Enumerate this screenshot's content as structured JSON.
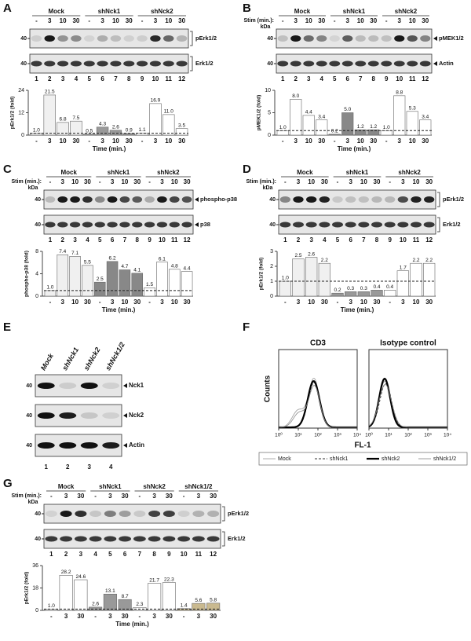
{
  "panels": [
    {
      "letter": "A",
      "groups": [
        "Mock",
        "shNck1",
        "shNck2"
      ],
      "stims": [
        "-",
        "3",
        "10",
        "30",
        "-",
        "3",
        "10",
        "30",
        "-",
        "3",
        "10",
        "30"
      ],
      "lanes": [
        1,
        2,
        3,
        4,
        5,
        6,
        7,
        8,
        9,
        10,
        11,
        12
      ],
      "pointer": "bracket",
      "blots": [
        {
          "marker": 40,
          "label": "pErk1/2"
        },
        {
          "marker": 40,
          "label": "Erk1/2"
        }
      ],
      "chart": {
        "ylabel": "pErk1/2 (fold)",
        "ylim": [
          0,
          24
        ],
        "yticks": [
          0,
          12,
          24
        ],
        "values": [
          1.0,
          21.5,
          6.8,
          7.5,
          0.5,
          4.3,
          2.6,
          0.9,
          1.1,
          16.9,
          11.0,
          3.5
        ],
        "value_labels": [
          "1.0",
          "21.5",
          "6.8",
          "7.5",
          "0.5",
          "4.3",
          "2.6",
          "0.9",
          "1.1",
          "16.9",
          "11.0",
          "3.5"
        ],
        "colors": [
          "#f0f0f0",
          "#999999",
          "#ffffff"
        ],
        "reference_line": 1,
        "xlabel": "Time (min.)"
      }
    },
    {
      "letter": "B",
      "stim_label": "Stim (min.):",
      "kda": "kDa",
      "groups": [
        "Mock",
        "shNck1",
        "shNck2"
      ],
      "stims": [
        "-",
        "3",
        "10",
        "30",
        "-",
        "3",
        "10",
        "30",
        "-",
        "3",
        "10",
        "30"
      ],
      "lanes": [
        1,
        2,
        3,
        4,
        5,
        6,
        7,
        8,
        9,
        10,
        11,
        12
      ],
      "pointer": "arrow",
      "blots": [
        {
          "marker": 40,
          "label": "pMEK1/2"
        },
        {
          "marker": 40,
          "label": "Actin"
        }
      ],
      "chart": {
        "ylabel": "pMEK1/2 (fold)",
        "ylim": [
          0,
          10
        ],
        "yticks": [
          0,
          5,
          10
        ],
        "values": [
          1.0,
          8.0,
          4.4,
          3.4,
          0.2,
          5.0,
          1.2,
          1.2,
          1.0,
          8.8,
          5.3,
          3.4
        ],
        "value_labels": [
          "1.0",
          "8.0",
          "4.4",
          "3.4",
          "0.2",
          "5.0",
          "1.2",
          "1.2",
          "1.0",
          "8.8",
          "5.3",
          "3.4"
        ],
        "colors": [
          "#ffffff",
          "#888888",
          "#ffffff"
        ],
        "reference_line": 1,
        "xlabel": "Time (min.)"
      }
    },
    {
      "letter": "C",
      "stim_label": "Stim (min.):",
      "kda": "kDa",
      "groups": [
        "Mock",
        "shNck1",
        "shNck2"
      ],
      "stims": [
        "-",
        "3",
        "10",
        "30",
        "-",
        "3",
        "10",
        "30",
        "-",
        "3",
        "10",
        "30"
      ],
      "lanes": [
        1,
        2,
        3,
        4,
        5,
        6,
        7,
        8,
        9,
        10,
        11,
        12
      ],
      "pointer": "arrow",
      "blots": [
        {
          "marker": 40,
          "label": "phospho-p38"
        },
        {
          "marker": 40,
          "label": "p38"
        }
      ],
      "chart": {
        "ylabel": "phospho-p38 (fold)",
        "ylim": [
          0,
          8
        ],
        "yticks": [
          0,
          4,
          8
        ],
        "values": [
          1.0,
          7.4,
          7.1,
          5.5,
          2.5,
          6.2,
          4.7,
          4.1,
          1.5,
          6.1,
          4.8,
          4.4
        ],
        "value_labels": [
          "1.0",
          "7.4",
          "7.1",
          "5.5",
          "2.5",
          "6.2",
          "4.7",
          "4.1",
          "1.5",
          "6.1",
          "4.8",
          "4.4"
        ],
        "colors": [
          "#f0f0f0",
          "#888888",
          "#ffffff"
        ],
        "reference_line": 1,
        "xlabel": "Time (min.)"
      }
    },
    {
      "letter": "D",
      "stim_label": "Stim (min.):",
      "kda": "kDa",
      "groups": [
        "Mock",
        "shNck1",
        "shNck2"
      ],
      "stims": [
        "-",
        "3",
        "10",
        "30",
        "-",
        "3",
        "10",
        "30",
        "-",
        "3",
        "10",
        "30"
      ],
      "lanes": [
        1,
        2,
        3,
        4,
        5,
        6,
        7,
        8,
        9,
        10,
        11,
        12
      ],
      "pointer": "bracket",
      "blots": [
        {
          "marker": 40,
          "label": "pErk1/2"
        },
        {
          "marker": 40,
          "label": "Erk1/2"
        }
      ],
      "chart": {
        "ylabel": "pErk1/2 (fold)",
        "ylim": [
          0,
          3
        ],
        "yticks": [
          0,
          1,
          2,
          3
        ],
        "values": [
          1.0,
          2.5,
          2.6,
          2.2,
          0.2,
          0.3,
          0.3,
          0.4,
          0.4,
          1.7,
          2.2,
          2.2
        ],
        "value_labels": [
          "1.0",
          "2.5",
          "2.6",
          "2.2",
          "0.2",
          "0.3",
          "0.3",
          "0.4",
          "0.4",
          "1.7",
          "2.2",
          "2.2"
        ],
        "colors": [
          "#f0f0f0",
          "#999999",
          "#ffffff"
        ],
        "reference_line": 1,
        "xlabel": "Time (min.)"
      }
    },
    {
      "letter": "E",
      "lane_headers": [
        "Mock",
        "shNck1",
        "shNck2",
        "shNck1/2"
      ],
      "lanes": [
        1,
        2,
        3,
        4
      ],
      "pointer": "arrow",
      "blots": [
        {
          "marker": 40,
          "label": "Nck1"
        },
        {
          "marker": 40,
          "label": "Nck2"
        },
        {
          "marker": 40,
          "label": "Actin"
        }
      ]
    },
    {
      "letter": "F",
      "plots": [
        {
          "title": "CD3"
        },
        {
          "title": "Isotype control"
        }
      ],
      "ylabel": "Counts",
      "xlabel": "FL-1",
      "xscale": "log",
      "xlim": [
        1,
        10000
      ],
      "xticks": [
        {
          "value": 1,
          "label": "10⁰"
        },
        {
          "value": 10,
          "label": "10¹"
        },
        {
          "value": 100,
          "label": "10²"
        },
        {
          "value": 1000,
          "label": "10³"
        },
        {
          "value": 10000,
          "label": "10⁴"
        }
      ],
      "series": [
        {
          "name": "Mock",
          "color": "#999999"
        },
        {
          "name": "shNck1",
          "color": "#333333"
        },
        {
          "name": "shNck2",
          "color": "#000000"
        },
        {
          "name": "shNck1/2",
          "color": "#888888"
        }
      ]
    },
    {
      "letter": "G",
      "stim_label": "Stim (min.):",
      "kda": "kDa",
      "groups": [
        "Mock",
        "shNck1",
        "shNck2",
        "shNck1/2"
      ],
      "stims": [
        "-",
        "3",
        "30",
        "-",
        "3",
        "30",
        "-",
        "3",
        "30",
        "-",
        "3",
        "30"
      ],
      "lanes": [
        1,
        2,
        3,
        4,
        5,
        6,
        7,
        8,
        9,
        10,
        11,
        12
      ],
      "pointer": "bracket",
      "blots": [
        {
          "marker": 40,
          "label": "pErk1/2"
        },
        {
          "marker": 40,
          "label": "Erk1/2"
        }
      ],
      "chart": {
        "ylabel": "pErk1/2 (fold)",
        "ylim": [
          0,
          36
        ],
        "yticks": [
          0,
          18,
          36
        ],
        "values": [
          1.0,
          28.2,
          24.6,
          2.6,
          13.1,
          8.7,
          2.3,
          21.7,
          22.3,
          1.4,
          5.6,
          5.8
        ],
        "value_labels": [
          "1.0",
          "28.2",
          "24.6",
          "2.6",
          "13.1",
          "8.7",
          "2.3",
          "21.7",
          "22.3",
          "1.4",
          "5.6",
          "5.8"
        ],
        "colors": [
          "#ffffff",
          "#999999",
          "#ffffff",
          "#c9b98f"
        ],
        "reference_line": 1,
        "xlabel": "Time (min.)"
      }
    }
  ]
}
